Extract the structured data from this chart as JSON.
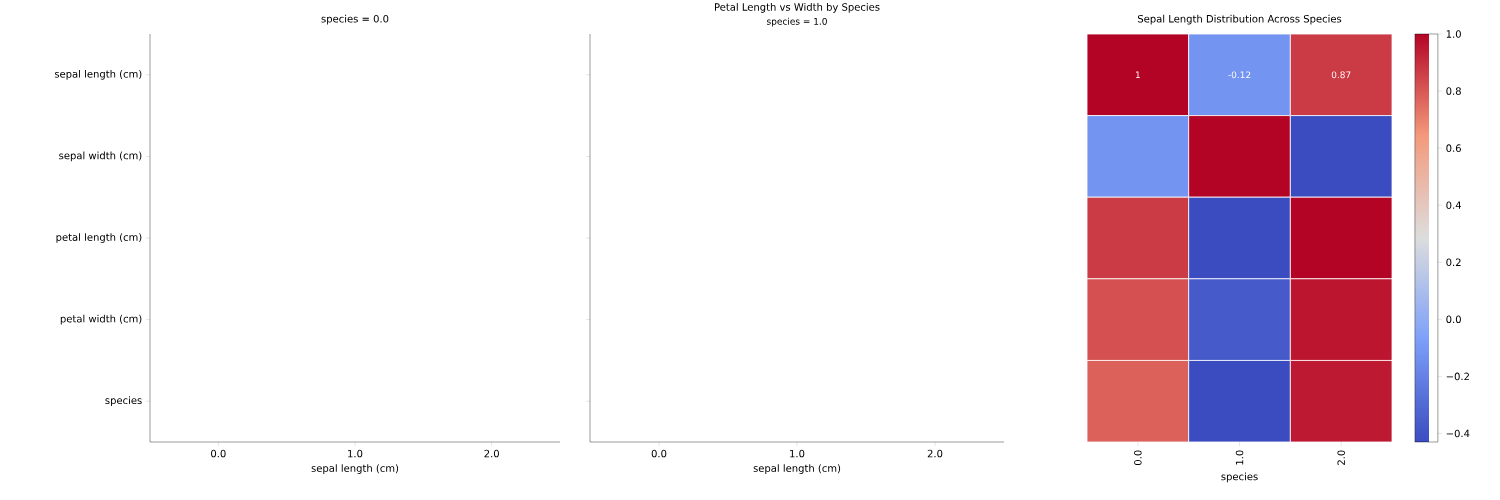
{
  "chart_data": [
    {
      "type": "other",
      "title": "species = 0.0",
      "xlabel": "sepal length (cm)",
      "categories": [
        "0.0",
        "1.0",
        "2.0"
      ],
      "y_categories": [
        "sepal length (cm)",
        "sepal width (cm)",
        "petal length (cm)",
        "petal width (cm)",
        "species"
      ]
    },
    {
      "type": "other",
      "title": "Petal Length vs Width by Species",
      "subtitle": "species = 1.0",
      "xlabel": "sepal length (cm)",
      "categories": [
        "0.0",
        "1.0",
        "2.0"
      ],
      "y_categories": [
        null,
        null,
        null,
        null,
        null
      ]
    },
    {
      "type": "heatmap",
      "title": "Sepal Length Distribution Across Species",
      "xlabel": "species",
      "categories": [
        "0.0",
        "1.0",
        "2.0"
      ],
      "y_categories": [
        null,
        null,
        null,
        null,
        null
      ],
      "cells": [
        [
          1,
          -0.12,
          0.87
        ],
        [
          -0.12,
          1,
          -0.43
        ],
        [
          0.87,
          -0.43,
          1
        ],
        [
          0.82,
          -0.37,
          0.96
        ],
        [
          0.78,
          -0.43,
          0.95
        ]
      ],
      "cell_labels": [
        [
          "1",
          "-0.12",
          "0.87"
        ],
        [
          null,
          null,
          null
        ],
        [
          null,
          null,
          null
        ],
        [
          null,
          null,
          null
        ],
        [
          null,
          null,
          null
        ]
      ],
      "clim": [
        -0.43,
        1
      ],
      "cticks": [
        {
          "value": -0.4,
          "label": "−0.4"
        },
        {
          "value": -0.2,
          "label": "−0.2"
        },
        {
          "value": 0,
          "label": "0.0"
        },
        {
          "value": 0.2,
          "label": "0.2"
        },
        {
          "value": 0.4,
          "label": "0.4"
        },
        {
          "value": 0.6,
          "label": "0.6"
        },
        {
          "value": 0.8,
          "label": "0.8"
        },
        {
          "value": 1,
          "label": "1.0"
        }
      ]
    }
  ]
}
